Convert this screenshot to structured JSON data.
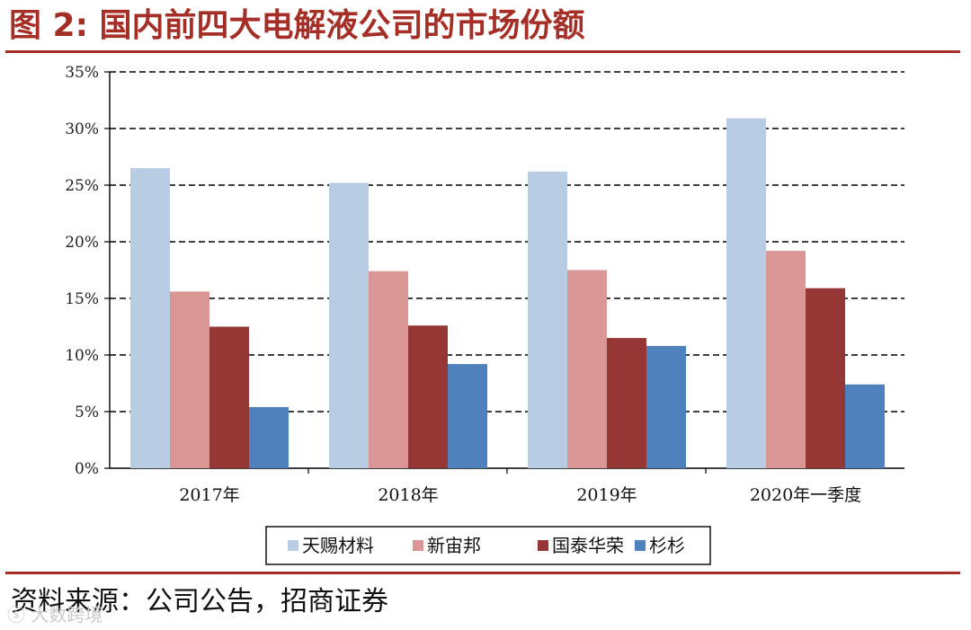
{
  "figure": {
    "title": "图 2:  国内前四大电解液公司的市场份额",
    "source": "资料来源：公司公告，招商证券",
    "watermark": "ⓢ 大数跨境",
    "accent_color": "#a52f27"
  },
  "chart_data": {
    "type": "bar",
    "categories": [
      "2017年",
      "2018年",
      "2019年",
      "2020年一季度"
    ],
    "series": [
      {
        "name": "天赐材料",
        "color": "#b8cce4",
        "values": [
          26.5,
          25.2,
          26.2,
          30.9
        ]
      },
      {
        "name": "新宙邦",
        "color": "#d99694",
        "values": [
          15.6,
          17.4,
          17.5,
          19.2
        ]
      },
      {
        "name": "国泰华荣",
        "color": "#953735",
        "values": [
          12.5,
          12.6,
          11.5,
          15.9
        ]
      },
      {
        "name": "杉杉",
        "color": "#4f81bd",
        "values": [
          5.4,
          9.2,
          10.8,
          7.4
        ]
      }
    ],
    "ylim": [
      0,
      35
    ],
    "yticks": [
      0,
      5,
      10,
      15,
      20,
      25,
      30,
      35
    ],
    "ytick_labels": [
      "0%",
      "5%",
      "10%",
      "15%",
      "20%",
      "25%",
      "30%",
      "35%"
    ],
    "grid": "dashed horizontal",
    "legend": "bottom"
  }
}
